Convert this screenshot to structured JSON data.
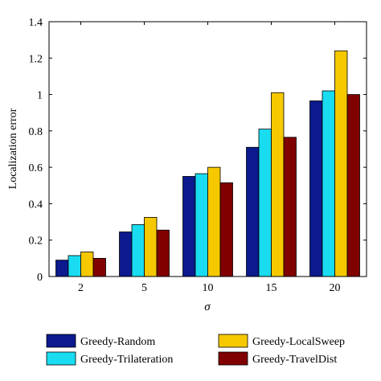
{
  "chart_data": {
    "type": "bar",
    "xlabel": "σ",
    "ylabel": "Localization error",
    "categories": [
      "2",
      "5",
      "10",
      "15",
      "20"
    ],
    "ylim": [
      0,
      1.4
    ],
    "yticks": [
      "0",
      "0.2",
      "0.4",
      "0.6",
      "0.8",
      "1",
      "1.2",
      "1.4"
    ],
    "grid": false,
    "legend_position": "bottom",
    "series": [
      {
        "name": "Greedy-Random",
        "color": "#0b1a8c",
        "values": [
          0.09,
          0.245,
          0.55,
          0.71,
          0.965
        ]
      },
      {
        "name": "Greedy-Trilateration",
        "color": "#19dcf0",
        "values": [
          0.115,
          0.285,
          0.565,
          0.81,
          1.02
        ]
      },
      {
        "name": "Greedy-LocalSweep",
        "color": "#f5c800",
        "values": [
          0.135,
          0.325,
          0.6,
          1.01,
          1.24
        ]
      },
      {
        "name": "Greedy-TravelDist",
        "color": "#800000",
        "values": [
          0.1,
          0.255,
          0.515,
          0.765,
          1.0
        ]
      }
    ]
  }
}
